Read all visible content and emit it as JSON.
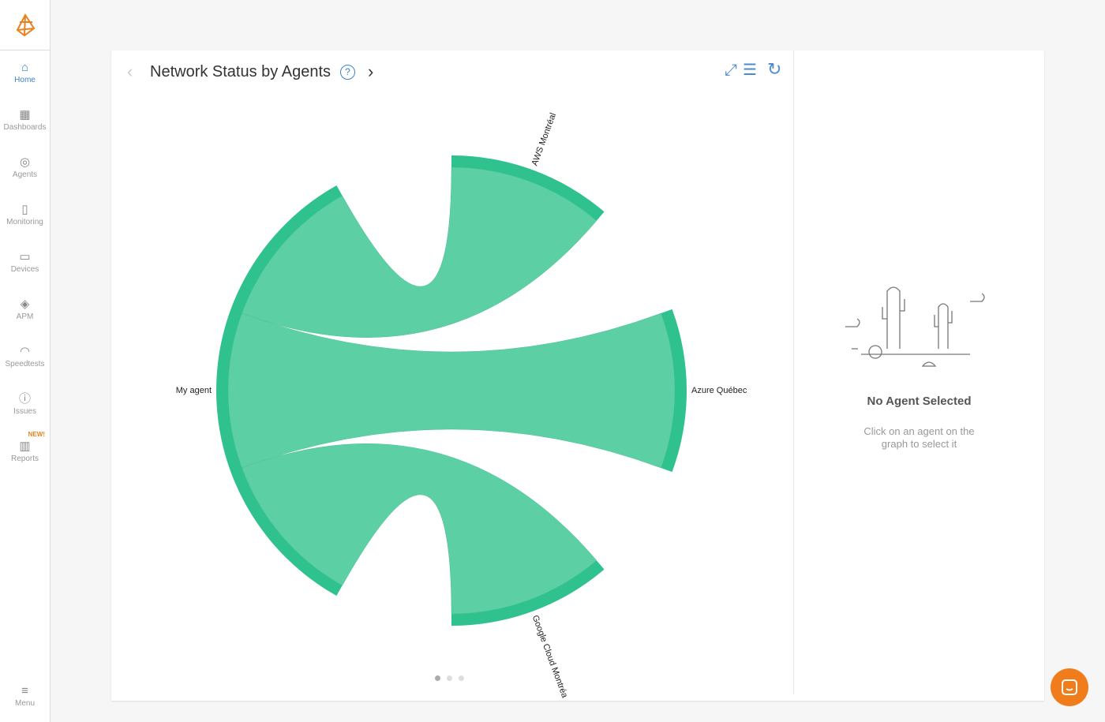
{
  "sidebar": {
    "items": [
      {
        "label": "Home",
        "icon": "home-icon",
        "glyph": "⌂"
      },
      {
        "label": "Dashboards",
        "icon": "dashboard-icon",
        "glyph": "▦"
      },
      {
        "label": "Agents",
        "icon": "agents-icon",
        "glyph": "◎"
      },
      {
        "label": "Monitoring",
        "icon": "bar-chart-icon",
        "glyph": "▯"
      },
      {
        "label": "Devices",
        "icon": "router-icon",
        "glyph": "▭"
      },
      {
        "label": "APM",
        "icon": "layers-icon",
        "glyph": "◈"
      },
      {
        "label": "Speedtests",
        "icon": "gauge-icon",
        "glyph": "◠"
      },
      {
        "label": "Issues",
        "icon": "alert-icon",
        "glyph": "ⓘ"
      },
      {
        "label": "Reports",
        "icon": "report-icon",
        "glyph": "▥",
        "badge": "NEW!"
      }
    ],
    "menu_label": "Menu"
  },
  "header": {
    "title": "Network Status by Agents",
    "help": "?",
    "prev": "‹",
    "next": "›"
  },
  "colors": {
    "arc": "#2fc28e",
    "ribbon": "#5dcfa5",
    "accent": "#3b82c4",
    "brand": "#f07c1b"
  },
  "chart_data": {
    "type": "chord",
    "groups": [
      "AWS Montréal",
      "Azure Québec",
      "Google Cloud Montréa",
      "My agent"
    ],
    "matrix": [
      [
        0,
        0,
        0,
        1
      ],
      [
        0,
        0,
        0,
        1
      ],
      [
        0,
        0,
        0,
        1
      ],
      [
        1,
        1,
        1,
        0
      ]
    ]
  },
  "details": {
    "empty_title": "No Agent Selected",
    "empty_text": "Click on an agent on the graph to select it"
  }
}
